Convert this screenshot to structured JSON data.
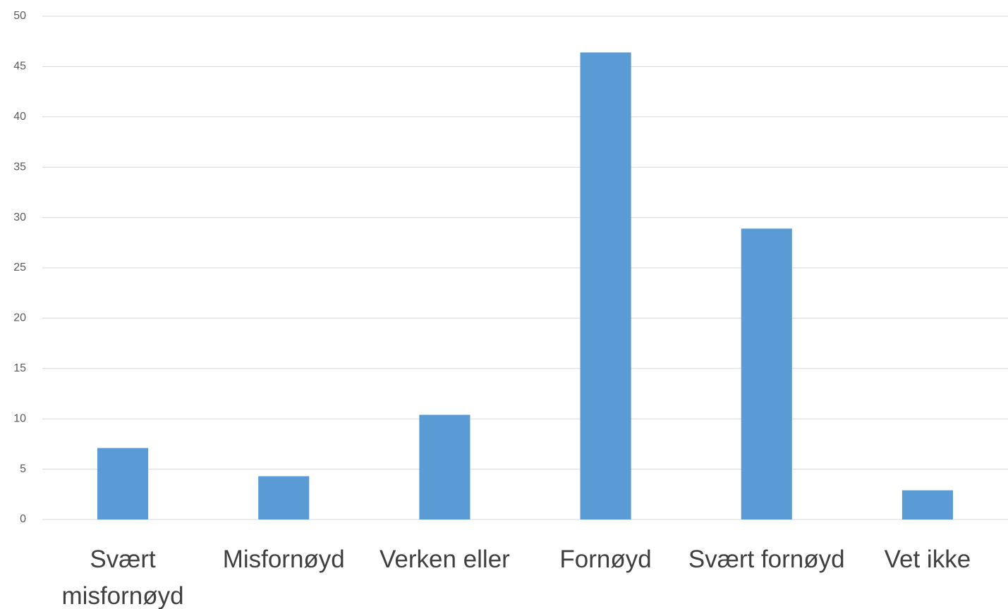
{
  "chart_data": {
    "type": "bar",
    "categories": [
      "Svært misfornøyd",
      "Misfornøyd",
      "Verken eller",
      "Fornøyd",
      "Svært fornøyd",
      "Vet ikke"
    ],
    "values": [
      7.1,
      4.3,
      10.4,
      46.4,
      28.9,
      2.9
    ],
    "color": "#5b9bd5",
    "ylim": [
      0,
      50
    ],
    "yticks": [
      0,
      5,
      10,
      15,
      20,
      25,
      30,
      35,
      40,
      45,
      50
    ],
    "grid": true
  }
}
